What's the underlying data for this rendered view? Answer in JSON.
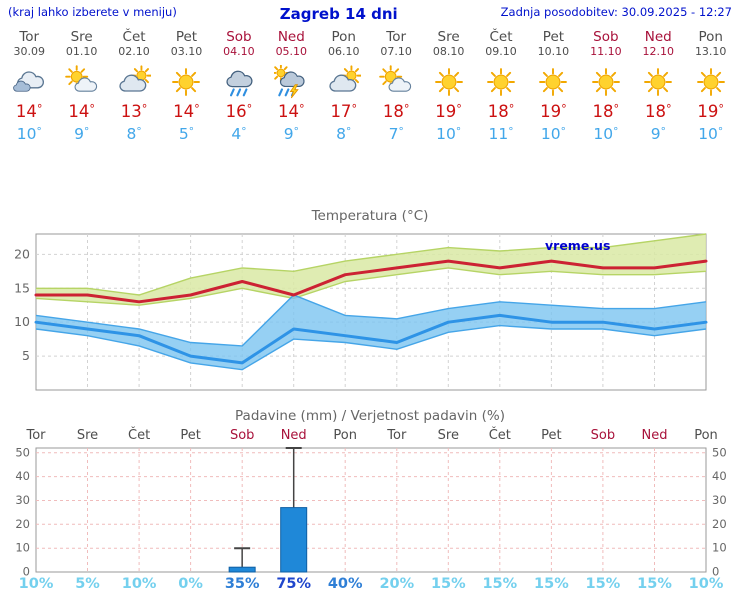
{
  "header": {
    "note": "(kraj lahko izberete v meniju)",
    "title": "Zagreb 14 dni",
    "updated": "Zadnja posodobitev: 30.09.2025 - 12:27"
  },
  "colors": {
    "link_blue": "#0011cc",
    "weekday": "#4d4d4d",
    "weekend": "#a8113a",
    "temp_max": "#cc1111",
    "temp_min": "#42a7ea",
    "chart_title": "#666666",
    "grid_gray": "#d2d2d2",
    "grid_pink": "#f0bcbc",
    "prob": {
      "low": "#74d0ee",
      "mid": "#2f7fd6",
      "high": "#1f46cc"
    }
  },
  "forecast": {
    "days": [
      {
        "name": "Tor",
        "date": "30.09",
        "weekend": false,
        "icon": "cloudy",
        "tmax": "14",
        "tmin": "10"
      },
      {
        "name": "Sre",
        "date": "01.10",
        "weekend": false,
        "icon": "partly-cloudy",
        "tmax": "14",
        "tmin": "9"
      },
      {
        "name": "Čet",
        "date": "02.10",
        "weekend": false,
        "icon": "mostly-cloudy",
        "tmax": "13",
        "tmin": "8"
      },
      {
        "name": "Pet",
        "date": "03.10",
        "weekend": false,
        "icon": "sunny",
        "tmax": "14",
        "tmin": "5"
      },
      {
        "name": "Sob",
        "date": "04.10",
        "weekend": true,
        "icon": "rain",
        "tmax": "16",
        "tmin": "4"
      },
      {
        "name": "Ned",
        "date": "05.10",
        "weekend": true,
        "icon": "thunderstorm",
        "tmax": "14",
        "tmin": "9"
      },
      {
        "name": "Pon",
        "date": "06.10",
        "weekend": false,
        "icon": "mostly-cloudy",
        "tmax": "17",
        "tmin": "8"
      },
      {
        "name": "Tor",
        "date": "07.10",
        "weekend": false,
        "icon": "partly-cloudy",
        "tmax": "18",
        "tmin": "7"
      },
      {
        "name": "Sre",
        "date": "08.10",
        "weekend": false,
        "icon": "sunny",
        "tmax": "19",
        "tmin": "10"
      },
      {
        "name": "Čet",
        "date": "09.10",
        "weekend": false,
        "icon": "sunny",
        "tmax": "18",
        "tmin": "11"
      },
      {
        "name": "Pet",
        "date": "10.10",
        "weekend": false,
        "icon": "sunny",
        "tmax": "19",
        "tmin": "10"
      },
      {
        "name": "Sob",
        "date": "11.10",
        "weekend": true,
        "icon": "sunny",
        "tmax": "18",
        "tmin": "10"
      },
      {
        "name": "Ned",
        "date": "12.10",
        "weekend": true,
        "icon": "sunny",
        "tmax": "18",
        "tmin": "9"
      },
      {
        "name": "Pon",
        "date": "13.10",
        "weekend": false,
        "icon": "sunny",
        "tmax": "19",
        "tmin": "10"
      }
    ]
  },
  "chart_data": [
    {
      "type": "line",
      "title": "Temperatura (°C)",
      "watermark": "vreme.us",
      "categories": [
        "Tor",
        "Sre",
        "Čet",
        "Pet",
        "Sob",
        "Ned",
        "Pon",
        "Tor",
        "Sre",
        "Čet",
        "Pet",
        "Sob",
        "Ned",
        "Pon"
      ],
      "ylim": [
        0,
        23
      ],
      "yticks": [
        5,
        10,
        15,
        20
      ],
      "series": [
        {
          "name": "max-temperature",
          "color": "#cc2233",
          "values": [
            14,
            14,
            13,
            14,
            16,
            14,
            17,
            18,
            19,
            18,
            19,
            18,
            18,
            19
          ]
        },
        {
          "name": "min-temperature",
          "color": "#2e93e6",
          "values": [
            10,
            9,
            8,
            5,
            4,
            9,
            8,
            7,
            10,
            11,
            10,
            10,
            9,
            10
          ]
        }
      ],
      "bands": [
        {
          "name": "max-range",
          "color": "#d9e9a4",
          "edge": "#b6d465",
          "opacity": 0.85,
          "upper": [
            15,
            15,
            14,
            16.5,
            18,
            17.5,
            19,
            20,
            21,
            20.5,
            21,
            21,
            22,
            23
          ],
          "lower": [
            13.5,
            13,
            12.5,
            13.5,
            15,
            13.5,
            16,
            17,
            18,
            17,
            17.5,
            17,
            17,
            17.5
          ]
        },
        {
          "name": "min-range",
          "color": "#7cc4f0",
          "edge": "#45a5e8",
          "opacity": 0.8,
          "upper": [
            11,
            10,
            9,
            7,
            6.5,
            14,
            11,
            10.5,
            12,
            13,
            12.5,
            12,
            12,
            13
          ],
          "lower": [
            9,
            8,
            6.5,
            4,
            3,
            7.5,
            7,
            6,
            8.5,
            9.5,
            9,
            9,
            8,
            9
          ]
        }
      ]
    },
    {
      "type": "bar",
      "title": "Padavine (mm) / Verjetnost padavin (%)",
      "categories": [
        "Tor",
        "Sre",
        "Čet",
        "Pet",
        "Sob",
        "Ned",
        "Pon",
        "Tor",
        "Sre",
        "Čet",
        "Pet",
        "Sob",
        "Ned",
        "Pon"
      ],
      "weekend_flags": [
        false,
        false,
        false,
        false,
        true,
        true,
        false,
        false,
        false,
        false,
        false,
        true,
        true,
        false
      ],
      "ylim": [
        0,
        52
      ],
      "yticks": [
        0,
        10,
        20,
        30,
        40,
        50
      ],
      "bar_color": "#1f88d8",
      "bar_edge": "#0f5fa3",
      "values": [
        0,
        0,
        0,
        0,
        2,
        27,
        0,
        0,
        0,
        0,
        0,
        0,
        0,
        0
      ],
      "whisker_max": [
        0,
        0,
        0,
        0,
        10,
        52,
        0,
        0,
        0,
        0,
        0,
        0,
        0,
        0
      ],
      "probabilities": [
        {
          "label": "10%",
          "tier": "low"
        },
        {
          "label": "5%",
          "tier": "low"
        },
        {
          "label": "10%",
          "tier": "low"
        },
        {
          "label": "0%",
          "tier": "low"
        },
        {
          "label": "35%",
          "tier": "mid"
        },
        {
          "label": "75%",
          "tier": "high"
        },
        {
          "label": "40%",
          "tier": "mid"
        },
        {
          "label": "20%",
          "tier": "low"
        },
        {
          "label": "15%",
          "tier": "low"
        },
        {
          "label": "15%",
          "tier": "low"
        },
        {
          "label": "15%",
          "tier": "low"
        },
        {
          "label": "15%",
          "tier": "low"
        },
        {
          "label": "15%",
          "tier": "low"
        },
        {
          "label": "10%",
          "tier": "low"
        }
      ]
    }
  ]
}
